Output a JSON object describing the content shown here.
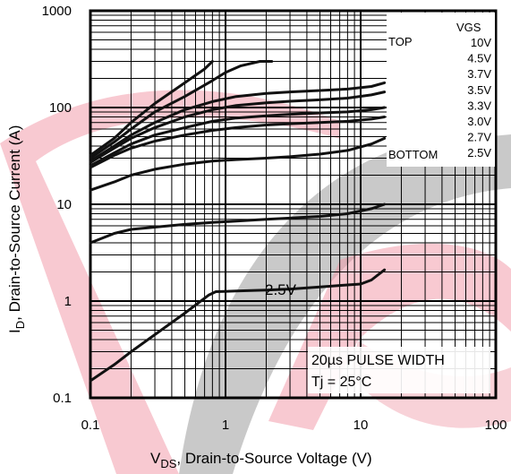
{
  "chart_data": {
    "type": "line",
    "xscale": "log",
    "yscale": "log",
    "xlim": [
      0.1,
      100
    ],
    "ylim": [
      0.1,
      1000
    ],
    "grid": true,
    "legend_placement": "top-right",
    "xlabel_main": "V",
    "xlabel_sub": "DS",
    "xlabel_rest": ", Drain-to-Source Voltage (V)",
    "ylabel_main": "I",
    "ylabel_sub": "D",
    "ylabel_rest": ", Drain-to-Source Current (A)",
    "x_ticks": [
      "0.1",
      "1",
      "10",
      "100"
    ],
    "y_ticks": [
      "0.1",
      "1",
      "10",
      "100",
      "1000"
    ],
    "legend": {
      "header": "VGS",
      "top_label": "TOP",
      "bottom_label": "BOTTOM",
      "entries": [
        "10V",
        "4.5V",
        "3.7V",
        "3.5V",
        "3.3V",
        "3.0V",
        "2.7V",
        "2.5V"
      ]
    },
    "annotations": {
      "curve_label": "2.5V",
      "pulse_line1": "20µs PULSE WIDTH",
      "pulse_line2": "Tj = 25°C"
    },
    "series": [
      {
        "name": "10V",
        "x": [
          0.1,
          0.15,
          0.2,
          0.3,
          0.5,
          0.7,
          0.8
        ],
        "y": [
          32,
          48,
          70,
          110,
          180,
          250,
          300
        ]
      },
      {
        "name": "4.5V",
        "x": [
          0.1,
          0.15,
          0.2,
          0.3,
          0.5,
          0.8,
          1.0,
          1.3,
          1.8,
          2.2
        ],
        "y": [
          30,
          44,
          60,
          90,
          130,
          190,
          230,
          270,
          300,
          300
        ]
      },
      {
        "name": "3.7V",
        "x": [
          0.1,
          0.15,
          0.2,
          0.3,
          0.5,
          0.8,
          1.2,
          2,
          3,
          5,
          8,
          12,
          15
        ],
        "y": [
          28,
          40,
          52,
          70,
          95,
          115,
          130,
          140,
          145,
          150,
          155,
          165,
          180
        ]
      },
      {
        "name": "3.5V",
        "x": [
          0.1,
          0.15,
          0.2,
          0.3,
          0.5,
          0.8,
          1.2,
          2,
          3,
          5,
          8,
          12,
          15
        ],
        "y": [
          27,
          38,
          48,
          62,
          80,
          95,
          105,
          112,
          116,
          120,
          125,
          135,
          145
        ]
      },
      {
        "name": "3.3V",
        "x": [
          0.1,
          0.15,
          0.2,
          0.3,
          0.5,
          0.8,
          1.2,
          2,
          3,
          5,
          8,
          12,
          15
        ],
        "y": [
          25,
          34,
          42,
          52,
          62,
          72,
          78,
          82,
          85,
          88,
          90,
          95,
          100
        ]
      },
      {
        "name": "3.0V",
        "x": [
          0.1,
          0.15,
          0.2,
          0.3,
          0.5,
          0.8,
          1.2,
          2,
          3,
          5,
          8,
          12,
          15
        ],
        "y": [
          24,
          32,
          38,
          45,
          52,
          58,
          62,
          66,
          68,
          70,
          72,
          76,
          80
        ]
      },
      {
        "name": "2.7V",
        "x": [
          0.1,
          0.15,
          0.2,
          0.3,
          0.5,
          0.8,
          1.2,
          2,
          3,
          5,
          8,
          12,
          15
        ],
        "y": [
          14,
          17,
          20,
          23,
          26,
          28,
          29,
          30,
          31,
          33,
          36,
          42,
          48
        ]
      },
      {
        "name": "2.5V",
        "x": [
          0.1,
          0.15,
          0.2,
          0.3,
          0.5,
          0.8,
          1.2,
          2,
          3,
          5,
          8,
          12,
          15
        ],
        "y": [
          4,
          5,
          5.5,
          5.8,
          6.2,
          6.5,
          6.7,
          7,
          7.2,
          7.5,
          8,
          9,
          10
        ]
      },
      {
        "name": "2.5V curve",
        "x": [
          0.1,
          0.15,
          0.2,
          0.3,
          0.5,
          0.75,
          0.85,
          1.2,
          2,
          3,
          5,
          7,
          10,
          12,
          15
        ],
        "y": [
          0.15,
          0.22,
          0.3,
          0.45,
          0.75,
          1.15,
          1.25,
          1.27,
          1.3,
          1.33,
          1.4,
          1.45,
          1.5,
          1.65,
          2.1
        ]
      }
    ]
  }
}
